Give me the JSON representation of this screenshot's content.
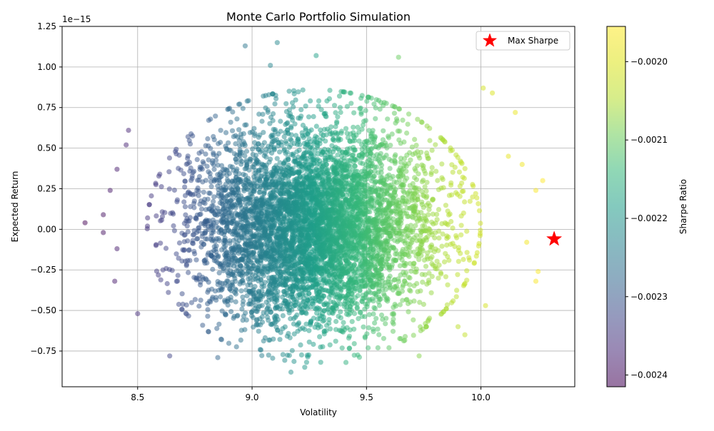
{
  "chart_data": {
    "type": "scatter",
    "title": "Monte Carlo Portfolio Simulation",
    "xlabel": "Volatility",
    "ylabel": "Expected Return",
    "y_offset_label": "1e−15",
    "xlim": [
      8.17,
      10.41
    ],
    "ylim": [
      -0.97,
      1.25
    ],
    "x_ticks": [
      8.5,
      9.0,
      9.5,
      10.0
    ],
    "x_tick_labels": [
      "8.5",
      "9.0",
      "9.5",
      "10.0"
    ],
    "y_ticks": [
      -0.75,
      -0.5,
      -0.25,
      0.0,
      0.25,
      0.5,
      0.75,
      1.0,
      1.25
    ],
    "y_tick_labels": [
      "−0.75",
      "−0.50",
      "−0.25",
      "0.00",
      "0.25",
      "0.50",
      "0.75",
      "1.00",
      "1.25"
    ],
    "grid": true,
    "legend": {
      "position": "top-right",
      "entries": [
        "Max Sharpe"
      ]
    },
    "colormap": "viridis",
    "marker_alpha": 0.5,
    "colorbar": {
      "label": "Sharpe Ratio",
      "range": [
        -0.002415,
        -0.001955
      ],
      "ticks": [
        -0.0024,
        -0.0023,
        -0.0022,
        -0.0021,
        -0.002
      ],
      "tick_labels": [
        "−0.0024",
        "−0.0023",
        "−0.0022",
        "−0.0021",
        "−0.0020"
      ]
    },
    "max_sharpe": {
      "x": 10.32,
      "y": -0.06,
      "color": "#ff0000"
    },
    "cloud": {
      "center_x": 9.27,
      "center_y": 0.02,
      "std_x": 0.26,
      "std_y": 0.3,
      "n_points": 6000
    },
    "outliers": [
      [
        8.27,
        0.04
      ],
      [
        8.35,
        0.09
      ],
      [
        8.35,
        -0.02
      ],
      [
        8.38,
        0.24
      ],
      [
        8.4,
        -0.32
      ],
      [
        8.41,
        0.37
      ],
      [
        8.41,
        -0.12
      ],
      [
        8.46,
        0.61
      ],
      [
        8.45,
        0.52
      ],
      [
        8.5,
        -0.52
      ],
      [
        8.64,
        -0.78
      ],
      [
        8.85,
        -0.79
      ],
      [
        8.97,
        1.13
      ],
      [
        9.11,
        1.15
      ],
      [
        9.08,
        1.01
      ],
      [
        9.28,
        1.07
      ],
      [
        9.64,
        1.06
      ],
      [
        9.17,
        -0.88
      ],
      [
        9.23,
        -0.85
      ],
      [
        9.41,
        -0.82
      ],
      [
        9.73,
        -0.78
      ],
      [
        10.01,
        0.87
      ],
      [
        10.05,
        0.84
      ],
      [
        10.15,
        0.72
      ],
      [
        10.18,
        0.4
      ],
      [
        10.24,
        0.24
      ],
      [
        10.27,
        0.3
      ],
      [
        10.24,
        -0.32
      ],
      [
        10.25,
        -0.26
      ],
      [
        10.02,
        -0.47
      ],
      [
        9.93,
        -0.65
      ],
      [
        9.9,
        -0.6
      ],
      [
        10.2,
        -0.08
      ],
      [
        10.12,
        0.45
      ],
      [
        9.55,
        -0.73
      ]
    ]
  }
}
